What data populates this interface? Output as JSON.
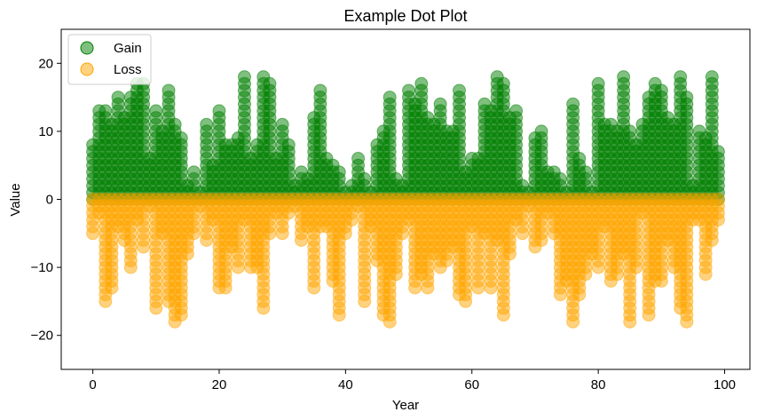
{
  "chart_data": {
    "type": "scatter",
    "title": "Example Dot Plot",
    "xlabel": "Year",
    "ylabel": "Value",
    "xlim": [
      -5,
      104
    ],
    "ylim": [
      -25,
      25
    ],
    "x_ticks": [
      0,
      20,
      40,
      60,
      80,
      100
    ],
    "y_ticks": [
      -20,
      -10,
      0,
      10,
      20
    ],
    "grid": false,
    "legend_position": "top-left",
    "marker": "circle",
    "alpha": 0.5,
    "stacked_unit_step": 1,
    "x": [
      0,
      1,
      2,
      3,
      4,
      5,
      6,
      7,
      8,
      9,
      10,
      11,
      12,
      13,
      14,
      15,
      16,
      17,
      18,
      19,
      20,
      21,
      22,
      23,
      24,
      25,
      26,
      27,
      28,
      29,
      30,
      31,
      32,
      33,
      34,
      35,
      36,
      37,
      38,
      39,
      40,
      41,
      42,
      43,
      44,
      45,
      46,
      47,
      48,
      49,
      50,
      51,
      52,
      53,
      54,
      55,
      56,
      57,
      58,
      59,
      60,
      61,
      62,
      63,
      64,
      65,
      66,
      67,
      68,
      69,
      70,
      71,
      72,
      73,
      74,
      75,
      76,
      77,
      78,
      79,
      80,
      81,
      82,
      83,
      84,
      85,
      86,
      87,
      88,
      89,
      90,
      91,
      92,
      93,
      94,
      95,
      96,
      97,
      98,
      99
    ],
    "series": [
      {
        "name": "Gain",
        "color": "#008000",
        "values": [
          8,
          13,
          13,
          11,
          15,
          12,
          15,
          17,
          17,
          6,
          13,
          10,
          16,
          11,
          9,
          2,
          4,
          1,
          11,
          5,
          13,
          8,
          8,
          9,
          18,
          6,
          8,
          18,
          17,
          6,
          11,
          8,
          2,
          4,
          3,
          12,
          16,
          6,
          5,
          4,
          1,
          2,
          6,
          3,
          1,
          8,
          10,
          15,
          3,
          2,
          16,
          14,
          17,
          12,
          11,
          14,
          10,
          10,
          16,
          4,
          6,
          6,
          14,
          13,
          18,
          17,
          12,
          13,
          2,
          1,
          9,
          10,
          4,
          4,
          3,
          1,
          14,
          6,
          4,
          1,
          17,
          11,
          11,
          10,
          18,
          10,
          8,
          11,
          15,
          17,
          16,
          12,
          11,
          18,
          15,
          2,
          10,
          9,
          18,
          7
        ]
      },
      {
        "name": "Loss",
        "color": "#ffa500",
        "values": [
          -5,
          -2,
          -15,
          -13,
          -4,
          -6,
          -10,
          -3,
          -7,
          -1,
          -16,
          -5,
          -15,
          -18,
          -17,
          -8,
          -5,
          -1,
          -6,
          -3,
          -13,
          -13,
          -7,
          -10,
          -3,
          -10,
          -10,
          -16,
          -5,
          -2,
          -5,
          -2,
          -1,
          -6,
          -4,
          -13,
          -4,
          -4,
          -12,
          -17,
          -5,
          -3,
          -1,
          -15,
          -4,
          -9,
          -17,
          -18,
          -11,
          -5,
          -3,
          -13,
          -11,
          -13,
          -8,
          -10,
          -9,
          -7,
          -14,
          -15,
          -4,
          -13,
          -5,
          -13,
          -6,
          -17,
          -8,
          -3,
          -5,
          -1,
          -7,
          -6,
          -2,
          -5,
          -14,
          -12,
          -18,
          -14,
          -11,
          -8,
          -10,
          -4,
          -12,
          -11,
          -8,
          -18,
          -10,
          -2,
          -17,
          -12,
          -12,
          -6,
          -10,
          -16,
          -18,
          -3,
          -3,
          -11,
          -6,
          -3
        ]
      }
    ]
  }
}
